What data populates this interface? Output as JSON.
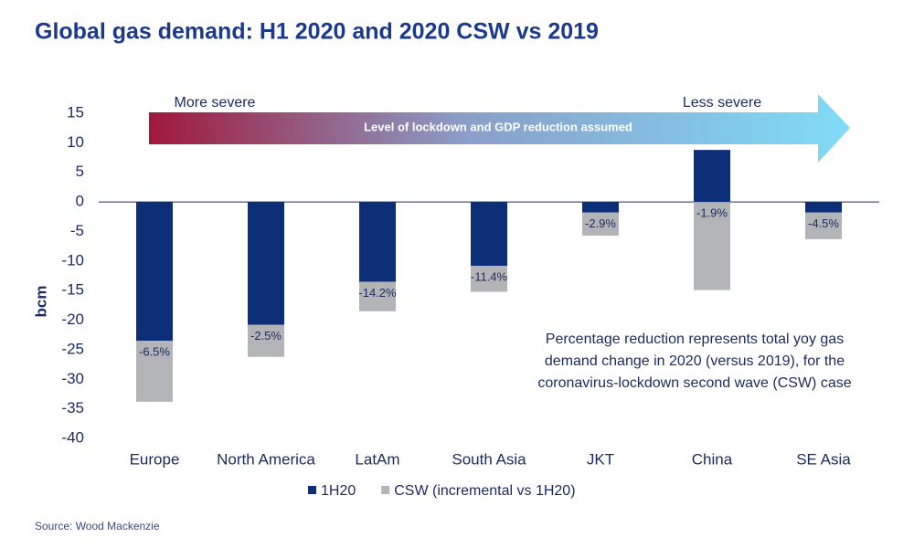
{
  "chart_data": {
    "type": "bar",
    "stacked": true,
    "title": "Global gas demand: H1 2020 and 2020 CSW vs 2019",
    "y_label": "bcm",
    "categories": [
      "Europe",
      "North America",
      "LatAm",
      "South Asia",
      "JKT",
      "China",
      "SE Asia"
    ],
    "series": [
      {
        "name": "1H20",
        "color": "#0d2f78",
        "values": [
          -23.5,
          -20.8,
          -13.5,
          -10.8,
          -1.8,
          8.8,
          -1.8
        ]
      },
      {
        "name": "CSW (incremental vs 1H20)",
        "color": "#b3b4b7",
        "values": [
          -10.3,
          -5.4,
          -5.0,
          -4.4,
          -3.9,
          -14.9,
          -4.5
        ]
      }
    ],
    "yoy_change_labels": [
      "-6.5%",
      "-2.5%",
      "-14.2%",
      "-11.4%",
      "-2.9%",
      "-1.9%",
      "-4.5%"
    ],
    "ylim": [
      -40,
      15
    ],
    "yticks": [
      -40,
      -35,
      -30,
      -25,
      -20,
      -15,
      -10,
      -5,
      0,
      5,
      10,
      15
    ],
    "arrow_left_label": "More severe",
    "arrow_right_label": "Less severe",
    "arrow_label": "Level of lockdown and GDP reduction assumed",
    "annotation": [
      "Percentage reduction represents total yoy gas",
      "demand change in 2020 (versus 2019), for the",
      "coronavirus-lockdown second wave (CSW) case"
    ],
    "source": "Source: Wood Mackenzie"
  }
}
